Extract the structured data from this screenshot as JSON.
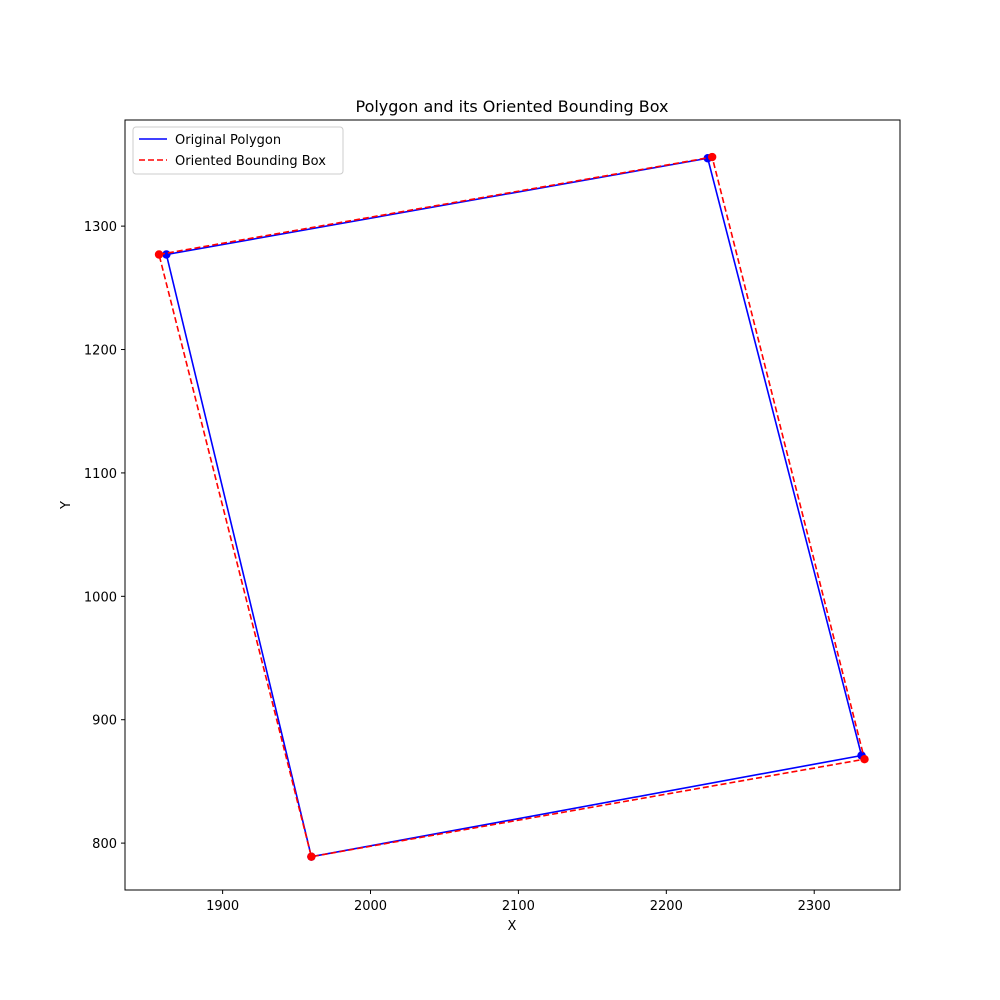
{
  "chart_data": {
    "type": "line",
    "title": "Polygon and its Oriented Bounding Box",
    "xlabel": "X",
    "ylabel": "Y",
    "xlim": [
      1834,
      2358
    ],
    "ylim": [
      762,
      1386
    ],
    "xticks": [
      1900,
      2000,
      2100,
      2200,
      2300
    ],
    "yticks": [
      800,
      900,
      1000,
      1100,
      1200,
      1300
    ],
    "grid": false,
    "legend_position": "upper-left",
    "series": [
      {
        "name": "Original Polygon",
        "color": "#0000ff",
        "style": "solid",
        "x": [
          1862,
          2228,
          2332,
          1960,
          1862
        ],
        "y": [
          1277,
          1355,
          871,
          789,
          1277
        ]
      },
      {
        "name": "Oriented Bounding Box",
        "color": "#ff0000",
        "style": "dashed",
        "x": [
          1857,
          2231,
          2334,
          1960,
          1857
        ],
        "y": [
          1277,
          1356,
          868,
          789,
          1277
        ]
      }
    ]
  }
}
